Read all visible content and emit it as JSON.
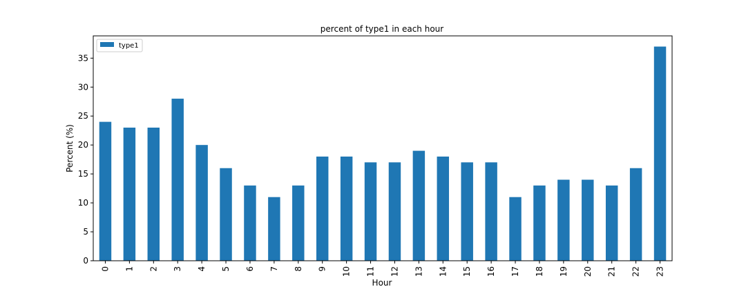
{
  "chart_data": {
    "type": "bar",
    "title": "percent of type1 in each hour",
    "xlabel": "Hour",
    "ylabel": "Percent (%)",
    "categories": [
      "0",
      "1",
      "2",
      "3",
      "4",
      "5",
      "6",
      "7",
      "8",
      "9",
      "10",
      "11",
      "12",
      "13",
      "14",
      "15",
      "16",
      "17",
      "18",
      "19",
      "20",
      "21",
      "22",
      "23"
    ],
    "series": [
      {
        "name": "type1",
        "values": [
          24,
          23,
          23,
          28,
          20,
          16,
          13,
          11,
          13,
          18,
          18,
          17,
          17,
          19,
          18,
          17,
          17,
          11,
          13,
          14,
          14,
          13,
          16,
          37
        ]
      }
    ],
    "ylim": [
      0,
      38.85
    ],
    "yticks": [
      0,
      5,
      10,
      15,
      20,
      25,
      30,
      35
    ],
    "bar_color": "#1f77b4",
    "grid": false,
    "legend_position": "top-left"
  }
}
